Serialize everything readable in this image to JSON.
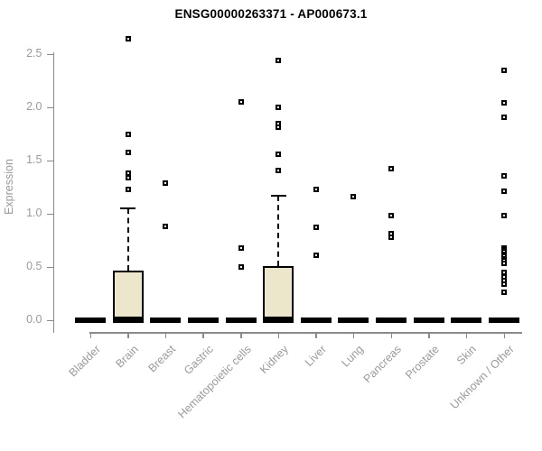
{
  "chart_data": {
    "type": "boxplot",
    "title": "ENSG00000263371 - AP000673.1",
    "ylabel": "Expression",
    "xlabel": "",
    "ylim": [
      0,
      2.65
    ],
    "yticks": [
      0.0,
      0.5,
      1.0,
      1.5,
      2.0,
      2.5
    ],
    "grid": false,
    "legend": false,
    "box_fill": "#ece6cd",
    "axis_color": "#8a8a8a",
    "label_color": "#9a9a9a",
    "categories": [
      "Bladder",
      "Brain",
      "Breast",
      "Gastric",
      "Hematopoietic cells",
      "Kidney",
      "Liver",
      "Lung",
      "Pancreas",
      "Prostate",
      "Skin",
      "Unknown / Other"
    ],
    "series": [
      {
        "category": "Bladder",
        "median": 0,
        "q1": 0,
        "q3": 0,
        "whisker_low": 0,
        "whisker_high": 0,
        "outliers": []
      },
      {
        "category": "Brain",
        "median": 0.01,
        "q1": 0,
        "q3": 0.47,
        "whisker_low": 0,
        "whisker_high": 1.05,
        "outliers": [
          2.64,
          1.75,
          1.58,
          1.38,
          1.34,
          1.23
        ]
      },
      {
        "category": "Breast",
        "median": 0,
        "q1": 0,
        "q3": 0,
        "whisker_low": 0,
        "whisker_high": 0,
        "outliers": [
          1.29,
          0.88
        ]
      },
      {
        "category": "Gastric",
        "median": 0,
        "q1": 0,
        "q3": 0,
        "whisker_low": 0,
        "whisker_high": 0,
        "outliers": []
      },
      {
        "category": "Hematopoietic cells",
        "median": 0,
        "q1": 0,
        "q3": 0,
        "whisker_low": 0,
        "whisker_high": 0,
        "outliers": [
          2.05,
          0.68,
          0.5
        ]
      },
      {
        "category": "Kidney",
        "median": 0.01,
        "q1": 0,
        "q3": 0.51,
        "whisker_low": 0,
        "whisker_high": 1.17,
        "outliers": [
          2.44,
          2.0,
          1.85,
          1.81,
          1.56,
          1.41
        ]
      },
      {
        "category": "Liver",
        "median": 0,
        "q1": 0,
        "q3": 0,
        "whisker_low": 0,
        "whisker_high": 0,
        "outliers": [
          1.23,
          0.87,
          0.61
        ]
      },
      {
        "category": "Lung",
        "median": 0,
        "q1": 0,
        "q3": 0,
        "whisker_low": 0,
        "whisker_high": 0,
        "outliers": [
          1.16
        ]
      },
      {
        "category": "Pancreas",
        "median": 0,
        "q1": 0,
        "q3": 0,
        "whisker_low": 0,
        "whisker_high": 0,
        "outliers": [
          1.42,
          0.98,
          0.81,
          0.78
        ]
      },
      {
        "category": "Prostate",
        "median": 0,
        "q1": 0,
        "q3": 0,
        "whisker_low": 0,
        "whisker_high": 0,
        "outliers": []
      },
      {
        "category": "Skin",
        "median": 0,
        "q1": 0,
        "q3": 0,
        "whisker_low": 0,
        "whisker_high": 0,
        "outliers": []
      },
      {
        "category": "Unknown / Other",
        "median": 0,
        "q1": 0,
        "q3": 0,
        "whisker_low": 0,
        "whisker_high": 0,
        "outliers": [
          2.35,
          2.04,
          1.91,
          1.36,
          1.21,
          0.98,
          0.68,
          0.66,
          0.64,
          0.62,
          0.6,
          0.58,
          0.56,
          0.53,
          0.45,
          0.41,
          0.37,
          0.34,
          0.26
        ]
      }
    ]
  }
}
